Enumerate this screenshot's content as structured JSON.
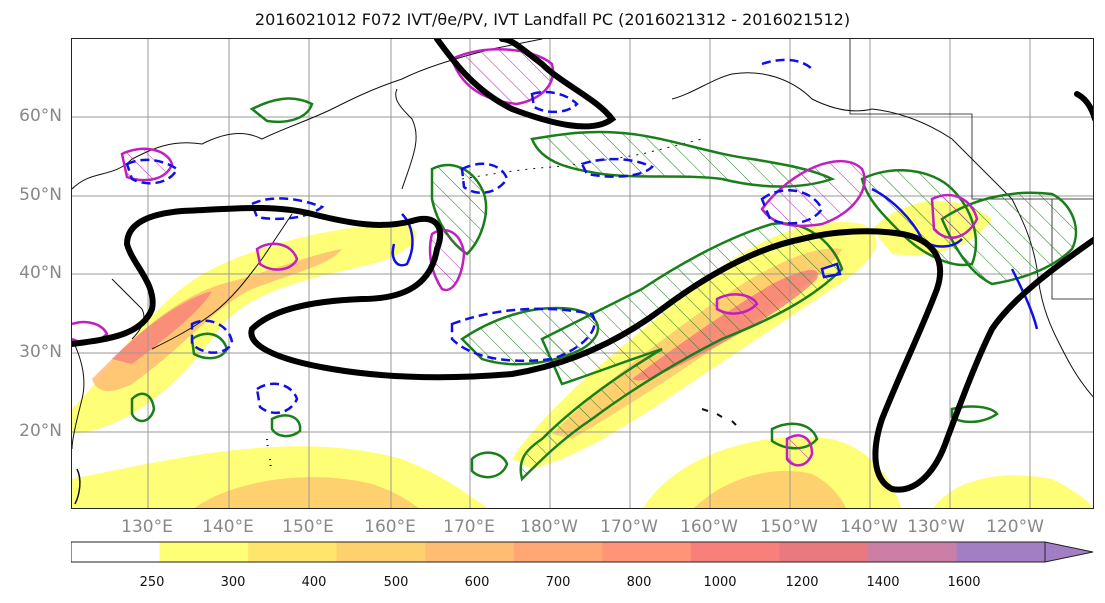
{
  "title": "2016021012 F072 IVT/θe/PV, IVT Landfall PC (2016021312 - 2016021512)",
  "map": {
    "lat_labels": [
      "60°N",
      "50°N",
      "40°N",
      "30°N",
      "20°N"
    ],
    "lon_labels": [
      "130°E",
      "140°E",
      "150°E",
      "160°E",
      "170°E",
      "180°W",
      "170°W",
      "160°W",
      "150°W",
      "140°W",
      "130°W",
      "120°W"
    ],
    "colors": {
      "pc_contour": "#000000",
      "theta_e_contour": "#1a7f1a",
      "pv_contour_solid": "#c21fc2",
      "pv_contour_dashed": "#1010e6"
    }
  },
  "colorbar": {
    "ticks": [
      "250",
      "300",
      "400",
      "500",
      "600",
      "700",
      "800",
      "1000",
      "1200",
      "1400",
      "1600"
    ],
    "colors": [
      "#ffffff",
      "#ffff77",
      "#ffe56b",
      "#ffd06e",
      "#ffbc73",
      "#ffa875",
      "#ff9478",
      "#f8807b",
      "#e8797e",
      "#cc7fa6",
      "#a47ec4"
    ],
    "extend": "max"
  }
}
